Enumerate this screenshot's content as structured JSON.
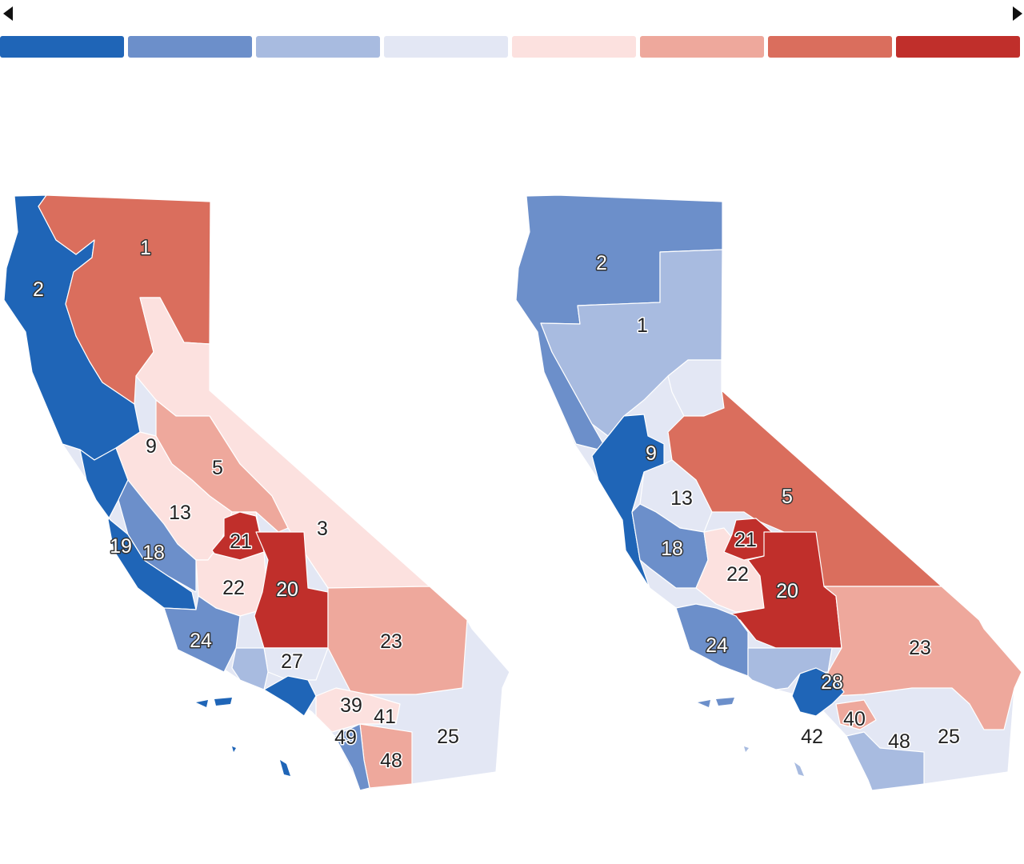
{
  "navigation": {
    "prev_icon": "triangle-left-icon",
    "next_icon": "triangle-right-icon"
  },
  "legend": {
    "colors": [
      "#1f65b7",
      "#6c8fca",
      "#a8bbe0",
      "#e3e7f4",
      "#fce1df",
      "#eea89c",
      "#da6e5d",
      "#c02f2b"
    ]
  },
  "maps": [
    {
      "labels": [
        {
          "text": "1",
          "fill": "#da6e5d"
        },
        {
          "text": "2",
          "fill": "#1f65b7"
        },
        {
          "text": "9",
          "fill": "#fce1df"
        },
        {
          "text": "5",
          "fill": "#eea89c"
        },
        {
          "text": "13",
          "fill": "#fce1df"
        },
        {
          "text": "3",
          "fill": "#fce1df"
        },
        {
          "text": "21",
          "fill": "#e3e7f4"
        },
        {
          "text": "19",
          "fill": "#1f65b7"
        },
        {
          "text": "18",
          "fill": "#6c8fca"
        },
        {
          "text": "22",
          "fill": "#fce1df"
        },
        {
          "text": "20",
          "fill": "#c02f2b"
        },
        {
          "text": "24",
          "fill": "#6c8fca"
        },
        {
          "text": "23",
          "fill": "#eea89c"
        },
        {
          "text": "27",
          "fill": "#e3e7f4"
        },
        {
          "text": "39",
          "fill": "#fce1df"
        },
        {
          "text": "41",
          "fill": "#fce1df"
        },
        {
          "text": "49",
          "fill": "#e3e7f4"
        },
        {
          "text": "25",
          "fill": "#e3e7f4"
        },
        {
          "text": "48",
          "fill": "#eea89c"
        }
      ]
    },
    {
      "labels": [
        {
          "text": "2",
          "fill": "#6c8fca"
        },
        {
          "text": "1",
          "fill": "#a8bbe0"
        },
        {
          "text": "9",
          "fill": "#1f65b7"
        },
        {
          "text": "13",
          "fill": "#e3e7f4"
        },
        {
          "text": "5",
          "fill": "#da6e5d"
        },
        {
          "text": "21",
          "fill": "#e3e7f4"
        },
        {
          "text": "18",
          "fill": "#6c8fca"
        },
        {
          "text": "22",
          "fill": "#fce1df"
        },
        {
          "text": "20",
          "fill": "#c02f2b"
        },
        {
          "text": "24",
          "fill": "#6c8fca"
        },
        {
          "text": "23",
          "fill": "#eea89c"
        },
        {
          "text": "28",
          "fill": "#6c8fca"
        },
        {
          "text": "40",
          "fill": "#eea89c"
        },
        {
          "text": "42",
          "fill": "#e3e7f4"
        },
        {
          "text": "48",
          "fill": "#e3e7f4"
        },
        {
          "text": "25",
          "fill": "#e3e7f4"
        }
      ]
    }
  ]
}
